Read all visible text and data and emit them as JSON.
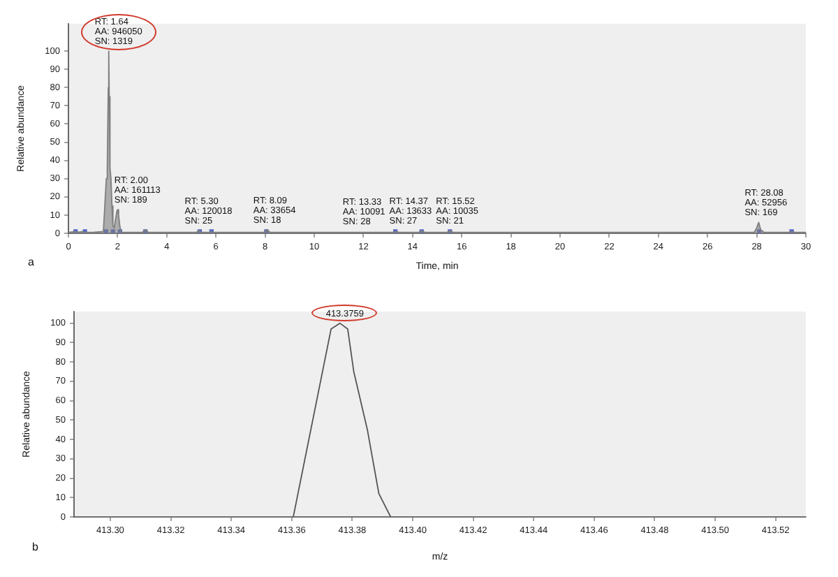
{
  "chart_data": [
    {
      "type": "area",
      "xlabel": "Time, min",
      "ylabel": "Relative abundance",
      "xlim": [
        0,
        30
      ],
      "xticks": [
        0,
        2,
        4,
        6,
        8,
        10,
        12,
        14,
        16,
        18,
        20,
        22,
        24,
        26,
        28,
        30
      ],
      "ylim": [
        0,
        115
      ],
      "yticks": [
        0,
        10,
        20,
        30,
        40,
        50,
        60,
        70,
        80,
        90,
        100
      ],
      "series": [
        {
          "color": "#7f7f7f",
          "x": [
            0,
            0.3,
            0.35,
            0.6,
            0.7,
            1.0,
            1.42,
            1.48,
            1.54,
            1.58,
            1.62,
            1.64,
            1.66,
            1.69,
            1.73,
            1.77,
            1.81,
            1.86,
            1.92,
            1.97,
            2.0,
            2.04,
            2.09,
            2.14,
            2.2,
            3.0,
            3.13,
            3.25,
            5.2,
            5.3,
            5.4,
            5.75,
            5.82,
            5.9,
            7.95,
            8.09,
            8.2,
            13.2,
            13.33,
            13.45,
            14.25,
            14.37,
            14.5,
            15.4,
            15.52,
            15.65,
            27.9,
            28.0,
            28.08,
            28.16,
            28.3,
            29.3,
            29.42,
            29.55,
            30
          ],
          "values": [
            0.5,
            1,
            0.5,
            1,
            0.5,
            0.5,
            1,
            15,
            30,
            36,
            80,
            100,
            75,
            36,
            30,
            15,
            4,
            3,
            8,
            12,
            13,
            10,
            4,
            1,
            0.5,
            0.5,
            2,
            0.5,
            0.5,
            1.5,
            0.5,
            0.5,
            1,
            0.5,
            0.5,
            2,
            0.5,
            0.5,
            1,
            0.5,
            0.5,
            1.5,
            0.5,
            0.5,
            1.5,
            0.5,
            0.5,
            3,
            6,
            2,
            0.5,
            0.5,
            1,
            0.5,
            0.5
          ]
        },
        {
          "type": "scatter",
          "color": "#4f63c9",
          "marker": "square",
          "x": [
            0.29,
            0.67,
            1.53,
            1.81,
            2.1,
            3.13,
            5.34,
            5.82,
            8.05,
            13.3,
            14.37,
            15.52,
            28.1,
            29.42
          ],
          "values": [
            1,
            1,
            1,
            1,
            1,
            1,
            1,
            1,
            1,
            1,
            1,
            1,
            1,
            1
          ]
        }
      ],
      "annotations": [
        {
          "text": "RT: 1.64\nAA: 946050\nSN: 1319",
          "x": 1.64,
          "y": 100
        },
        {
          "text": "RT: 2.00\nAA: 161113\nSN: 189",
          "x": 2.0,
          "y": 13
        },
        {
          "text": "RT: 5.30\nAA: 120018\nSN: 25",
          "x": 5.3,
          "y": 1.5
        },
        {
          "text": "RT: 8.09\nAA: 33654\nSN: 18",
          "x": 8.09,
          "y": 2
        },
        {
          "text": "RT: 13.33\nAA: 10091\nSN: 28",
          "x": 13.33,
          "y": 1
        },
        {
          "text": "RT: 14.37\nAA: 13633\nSN: 27",
          "x": 14.37,
          "y": 1.5
        },
        {
          "text": "RT: 15.52\nAA: 10035\nSN: 21",
          "x": 15.52,
          "y": 1.5
        },
        {
          "text": "RT: 28.08\nAA: 52956\nSN: 169",
          "x": 28.08,
          "y": 6
        },
        "a"
      ]
    },
    {
      "type": "line",
      "xlabel": "m/z",
      "ylabel": "Relative abundance",
      "xlim": [
        413.288,
        413.53
      ],
      "xticks": [
        {
          "value": 413.3,
          "label": "413.30"
        },
        413.32,
        413.34,
        413.36,
        413.38,
        {
          "value": 413.4,
          "label": "413.40"
        },
        413.42,
        413.44,
        413.46,
        413.48,
        {
          "value": 413.5,
          "label": "413.50"
        },
        413.52
      ],
      "ylim": [
        0,
        106
      ],
      "yticks": [
        0,
        10,
        20,
        30,
        40,
        50,
        60,
        70,
        80,
        90,
        100
      ],
      "series": [
        {
          "color": "#555555",
          "x": [
            413.3605,
            413.373,
            413.3759,
            413.3785,
            413.3805,
            413.385,
            413.3888,
            413.3927
          ],
          "values": [
            0,
            97,
            100,
            97,
            75,
            45,
            12,
            0
          ]
        }
      ],
      "annotations": [
        {
          "text": "413.3759",
          "x": 413.3759,
          "y": 100
        },
        "b"
      ]
    }
  ]
}
